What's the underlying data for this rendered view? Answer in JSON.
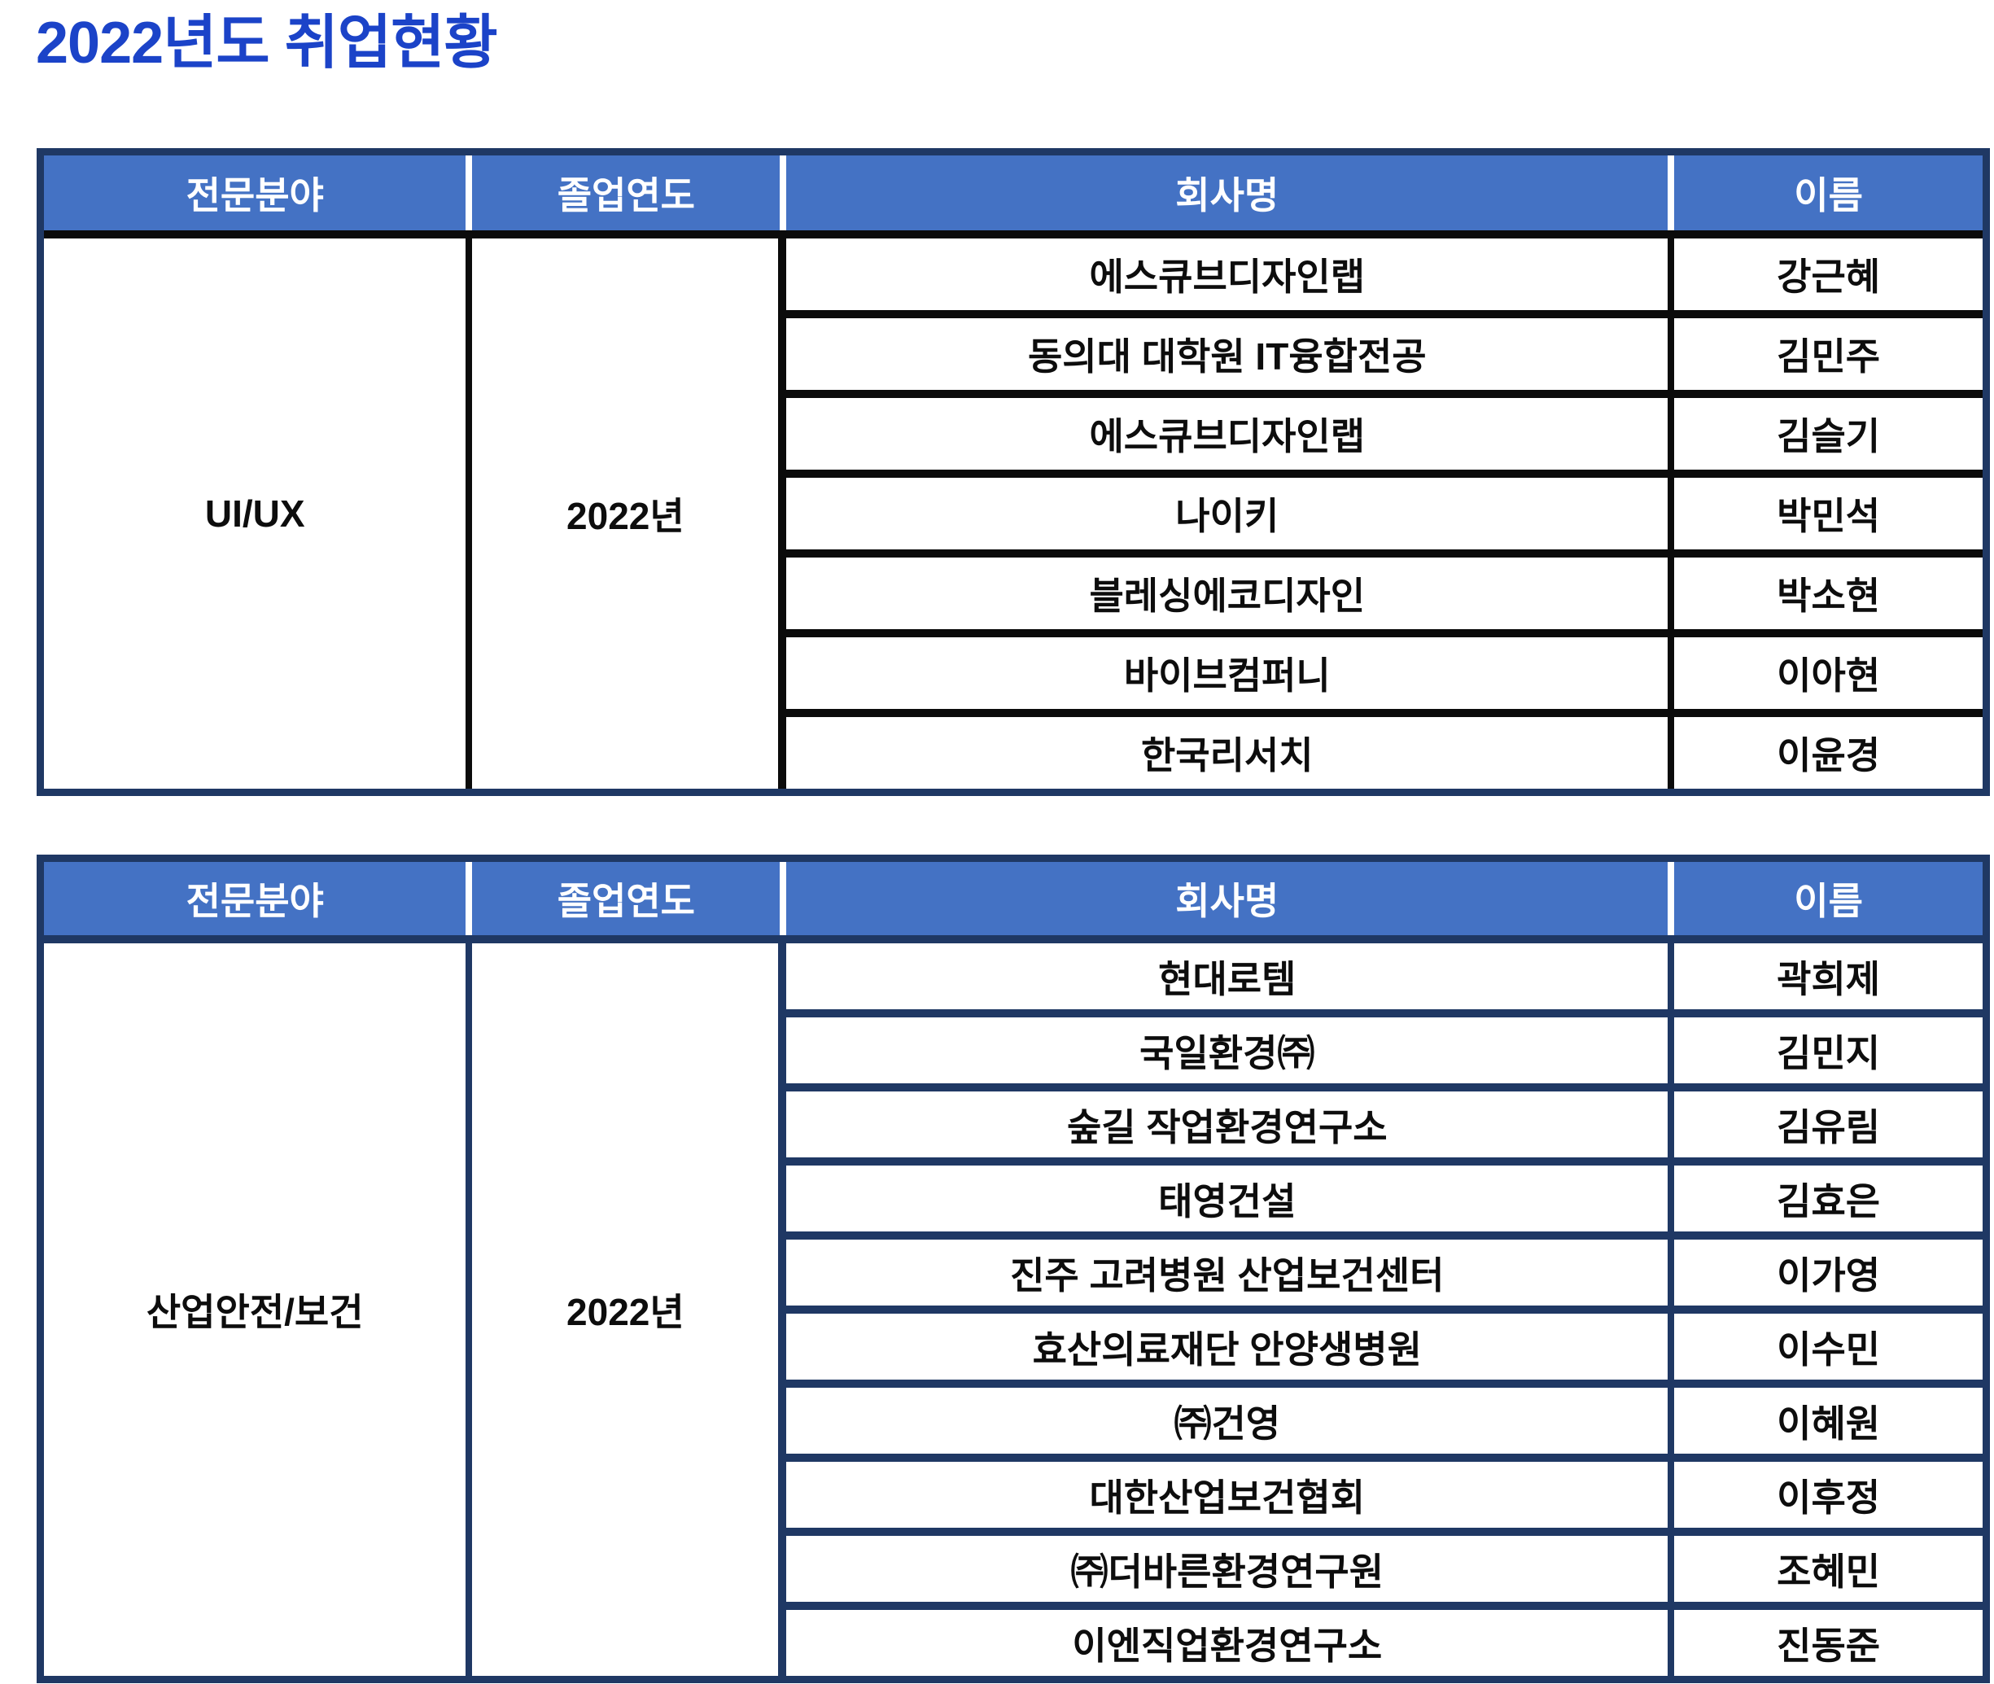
{
  "title": "2022년도 취업현황",
  "colors": {
    "title_blue": "#1B43C8",
    "header_bg": "#4472C4",
    "header_text": "#FFFFFF",
    "outer_border_navy": "#1F3864",
    "table1_gridlines": "#0B0B0B",
    "table2_gridlines": "#1F3864",
    "body_text": "#0D0D0D",
    "background": "#FFFFFF"
  },
  "tables": [
    {
      "headers": [
        "전문분야",
        "졸업연도",
        "회사명",
        "이름"
      ],
      "field": "UI/UX",
      "year": "2022년",
      "rows": [
        {
          "company": "에스큐브디자인랩",
          "name": "강근혜"
        },
        {
          "company": "동의대 대학원 IT융합전공",
          "name": "김민주"
        },
        {
          "company": "에스큐브디자인랩",
          "name": "김슬기"
        },
        {
          "company": "나이키",
          "name": "박민석"
        },
        {
          "company": "블레싱에코디자인",
          "name": "박소현"
        },
        {
          "company": "바이브컴퍼니",
          "name": "이아현"
        },
        {
          "company": "한국리서치",
          "name": "이윤경"
        }
      ]
    },
    {
      "headers": [
        "전문분야",
        "졸업연도",
        "회사명",
        "이름"
      ],
      "field": "산업안전/보건",
      "year": "2022년",
      "rows": [
        {
          "company": "현대로템",
          "name": "곽희제"
        },
        {
          "company": "국일환경㈜",
          "name": "김민지"
        },
        {
          "company": "숲길 작업환경연구소",
          "name": "김유림"
        },
        {
          "company": "태영건설",
          "name": "김효은"
        },
        {
          "company": "진주 고려병원 산업보건센터",
          "name": "이가영"
        },
        {
          "company": "효산의료재단 안양생병원",
          "name": "이수민"
        },
        {
          "company": "㈜건영",
          "name": "이혜원"
        },
        {
          "company": "대한산업보건협회",
          "name": "이후정"
        },
        {
          "company": "㈜더바른환경연구원",
          "name": "조혜민"
        },
        {
          "company": "이엔직업환경연구소",
          "name": "진동준"
        }
      ]
    }
  ]
}
